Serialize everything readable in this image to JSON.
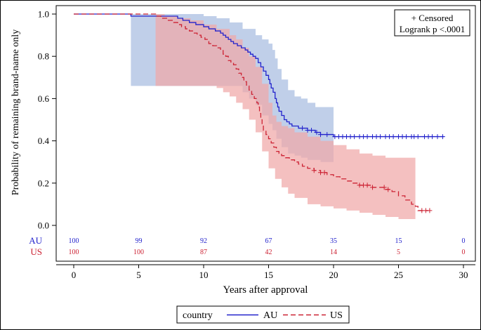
{
  "chart_data": {
    "type": "line",
    "subtype": "kaplan-meier",
    "title": "",
    "xlabel": "Years after approval",
    "ylabel": "Probability of remaining brand-name only",
    "xlim": [
      0,
      30
    ],
    "ylim": [
      0,
      1
    ],
    "xticks": [
      0,
      5,
      10,
      15,
      20,
      25,
      30
    ],
    "yticks": [
      0.0,
      0.2,
      0.4,
      0.6,
      0.8,
      1.0
    ],
    "ytick_labels": [
      "0.0",
      "0.2",
      "0.4",
      "0.6",
      "0.8",
      "1.0"
    ],
    "grid": false,
    "legend": {
      "position": "bottom",
      "title": "country",
      "entries": [
        "AU",
        "US"
      ]
    },
    "inset": {
      "position": "top-right",
      "censored_label": "+ Censored",
      "test_label": "Logrank p <.0001"
    },
    "at_risk": {
      "times": [
        0,
        5,
        10,
        15,
        20,
        25,
        30
      ],
      "rows": [
        {
          "label": "AU",
          "values": [
            "100",
            "99",
            "92",
            "67",
            "35",
            "15",
            "0"
          ]
        },
        {
          "label": "US",
          "values": [
            "100",
            "100",
            "87",
            "42",
            "14",
            "5",
            "0"
          ]
        }
      ]
    },
    "series": [
      {
        "name": "AU",
        "color": "#2222cc",
        "band_color": "#a8bce0",
        "dash": "solid",
        "steps": [
          [
            0,
            1.0
          ],
          [
            4.4,
            0.99
          ],
          [
            8.0,
            0.98
          ],
          [
            8.4,
            0.97
          ],
          [
            8.9,
            0.96
          ],
          [
            9.4,
            0.95
          ],
          [
            10.0,
            0.94
          ],
          [
            10.4,
            0.93
          ],
          [
            10.9,
            0.92
          ],
          [
            11.3,
            0.91
          ],
          [
            11.5,
            0.9
          ],
          [
            11.7,
            0.89
          ],
          [
            11.9,
            0.88
          ],
          [
            12.1,
            0.87
          ],
          [
            12.3,
            0.86
          ],
          [
            12.6,
            0.85
          ],
          [
            12.9,
            0.84
          ],
          [
            13.2,
            0.83
          ],
          [
            13.4,
            0.82
          ],
          [
            13.6,
            0.81
          ],
          [
            13.8,
            0.8
          ],
          [
            14.0,
            0.79
          ],
          [
            14.2,
            0.77
          ],
          [
            14.4,
            0.75
          ],
          [
            14.6,
            0.73
          ],
          [
            14.8,
            0.71
          ],
          [
            15.0,
            0.69
          ],
          [
            15.1,
            0.67
          ],
          [
            15.2,
            0.65
          ],
          [
            15.35,
            0.63
          ],
          [
            15.5,
            0.6
          ],
          [
            15.6,
            0.58
          ],
          [
            15.7,
            0.56
          ],
          [
            15.8,
            0.54
          ],
          [
            16.0,
            0.52
          ],
          [
            16.2,
            0.5
          ],
          [
            16.4,
            0.49
          ],
          [
            16.6,
            0.48
          ],
          [
            16.8,
            0.47
          ],
          [
            17.3,
            0.46
          ],
          [
            18.0,
            0.45
          ],
          [
            18.6,
            0.44
          ],
          [
            19.0,
            0.43
          ],
          [
            20.0,
            0.42
          ],
          [
            28.5,
            0.42
          ]
        ],
        "upper": [
          [
            0,
            1.0
          ],
          [
            8.0,
            1.0
          ],
          [
            10.0,
            0.99
          ],
          [
            11.0,
            0.98
          ],
          [
            12.0,
            0.96
          ],
          [
            13.0,
            0.93
          ],
          [
            14.0,
            0.9
          ],
          [
            14.5,
            0.88
          ],
          [
            15.0,
            0.86
          ],
          [
            15.3,
            0.83
          ],
          [
            15.5,
            0.79
          ],
          [
            15.7,
            0.74
          ],
          [
            16.0,
            0.69
          ],
          [
            16.5,
            0.64
          ],
          [
            17.0,
            0.61
          ],
          [
            17.5,
            0.6
          ],
          [
            18.0,
            0.58
          ],
          [
            18.6,
            0.56
          ],
          [
            20.0,
            0.55
          ]
        ],
        "lower": [
          [
            0,
            1.0
          ],
          [
            4.4,
            0.66
          ],
          [
            8.0,
            0.66
          ],
          [
            10.0,
            0.66
          ],
          [
            11.0,
            0.66
          ],
          [
            12.0,
            0.66
          ],
          [
            13.0,
            0.63
          ],
          [
            13.5,
            0.6
          ],
          [
            14.0,
            0.57
          ],
          [
            14.5,
            0.52
          ],
          [
            15.0,
            0.48
          ],
          [
            15.3,
            0.45
          ],
          [
            15.6,
            0.41
          ],
          [
            16.0,
            0.37
          ],
          [
            16.5,
            0.34
          ],
          [
            17.0,
            0.33
          ],
          [
            17.5,
            0.32
          ],
          [
            18.0,
            0.31
          ],
          [
            19.0,
            0.3
          ],
          [
            20.0,
            0.3
          ]
        ],
        "censored": [
          17.6,
          18.0,
          18.3,
          18.7,
          19.0,
          19.5,
          20.1,
          20.4,
          20.7,
          21.0,
          21.3,
          21.6,
          22.0,
          22.3,
          22.6,
          23.0,
          23.3,
          23.6,
          24.0,
          24.3,
          24.6,
          25.0,
          25.3,
          25.6,
          26.0,
          26.2,
          26.5,
          27.0,
          27.3,
          27.6,
          28.0,
          28.4
        ]
      },
      {
        "name": "US",
        "color": "#cc2233",
        "band_color": "#f0a8a8",
        "dash": "dashed",
        "steps": [
          [
            0,
            1.0
          ],
          [
            6.3,
            0.99
          ],
          [
            6.7,
            0.98
          ],
          [
            7.2,
            0.97
          ],
          [
            7.7,
            0.96
          ],
          [
            8.0,
            0.95
          ],
          [
            8.3,
            0.94
          ],
          [
            8.6,
            0.93
          ],
          [
            8.9,
            0.92
          ],
          [
            9.2,
            0.91
          ],
          [
            9.5,
            0.9
          ],
          [
            9.8,
            0.89
          ],
          [
            10.1,
            0.88
          ],
          [
            10.4,
            0.86
          ],
          [
            10.7,
            0.85
          ],
          [
            11.0,
            0.84
          ],
          [
            11.3,
            0.83
          ],
          [
            11.5,
            0.81
          ],
          [
            11.7,
            0.8
          ],
          [
            11.9,
            0.78
          ],
          [
            12.1,
            0.77
          ],
          [
            12.3,
            0.76
          ],
          [
            12.5,
            0.74
          ],
          [
            12.7,
            0.72
          ],
          [
            12.9,
            0.7
          ],
          [
            13.1,
            0.68
          ],
          [
            13.3,
            0.66
          ],
          [
            13.5,
            0.64
          ],
          [
            13.7,
            0.62
          ],
          [
            13.9,
            0.6
          ],
          [
            14.1,
            0.58
          ],
          [
            14.2,
            0.56
          ],
          [
            14.3,
            0.53
          ],
          [
            14.4,
            0.5
          ],
          [
            14.5,
            0.47
          ],
          [
            14.6,
            0.45
          ],
          [
            14.8,
            0.43
          ],
          [
            15.0,
            0.41
          ],
          [
            15.2,
            0.39
          ],
          [
            15.4,
            0.37
          ],
          [
            15.6,
            0.35
          ],
          [
            15.8,
            0.34
          ],
          [
            16.0,
            0.33
          ],
          [
            16.3,
            0.32
          ],
          [
            16.6,
            0.31
          ],
          [
            17.0,
            0.3
          ],
          [
            17.3,
            0.29
          ],
          [
            17.6,
            0.28
          ],
          [
            18.0,
            0.27
          ],
          [
            18.5,
            0.26
          ],
          [
            19.0,
            0.25
          ],
          [
            19.5,
            0.24
          ],
          [
            20.0,
            0.23
          ],
          [
            20.5,
            0.22
          ],
          [
            21.0,
            0.21
          ],
          [
            21.5,
            0.2
          ],
          [
            22.0,
            0.19
          ],
          [
            23.0,
            0.18
          ],
          [
            24.0,
            0.17
          ],
          [
            24.5,
            0.16
          ],
          [
            25.0,
            0.14
          ],
          [
            25.5,
            0.12
          ],
          [
            26.0,
            0.1
          ],
          [
            26.3,
            0.09
          ],
          [
            26.5,
            0.07
          ],
          [
            27.3,
            0.07
          ]
        ],
        "upper": [
          [
            0,
            1.0
          ],
          [
            6.3,
            1.0
          ],
          [
            7.0,
            0.99
          ],
          [
            8.0,
            0.98
          ],
          [
            9.0,
            0.97
          ],
          [
            10.0,
            0.95
          ],
          [
            11.0,
            0.93
          ],
          [
            12.0,
            0.9
          ],
          [
            12.5,
            0.88
          ],
          [
            13.0,
            0.84
          ],
          [
            13.5,
            0.8
          ],
          [
            14.0,
            0.75
          ],
          [
            14.5,
            0.67
          ],
          [
            15.0,
            0.58
          ],
          [
            15.3,
            0.52
          ],
          [
            15.6,
            0.49
          ],
          [
            16.0,
            0.47
          ],
          [
            16.5,
            0.46
          ],
          [
            17.0,
            0.44
          ],
          [
            18.0,
            0.42
          ],
          [
            19.0,
            0.4
          ],
          [
            20.0,
            0.38
          ],
          [
            21.0,
            0.36
          ],
          [
            22.0,
            0.34
          ],
          [
            23.0,
            0.33
          ],
          [
            24.0,
            0.32
          ],
          [
            26.3,
            0.32
          ]
        ],
        "lower": [
          [
            0,
            1.0
          ],
          [
            6.3,
            0.66
          ],
          [
            8.0,
            0.66
          ],
          [
            10.0,
            0.66
          ],
          [
            11.0,
            0.65
          ],
          [
            11.5,
            0.63
          ],
          [
            12.0,
            0.61
          ],
          [
            12.5,
            0.58
          ],
          [
            13.0,
            0.55
          ],
          [
            13.5,
            0.5
          ],
          [
            14.0,
            0.44
          ],
          [
            14.5,
            0.35
          ],
          [
            15.0,
            0.27
          ],
          [
            15.5,
            0.22
          ],
          [
            16.0,
            0.18
          ],
          [
            16.5,
            0.15
          ],
          [
            17.0,
            0.13
          ],
          [
            18.0,
            0.1
          ],
          [
            19.0,
            0.09
          ],
          [
            20.0,
            0.08
          ],
          [
            21.0,
            0.07
          ],
          [
            22.0,
            0.06
          ],
          [
            23.0,
            0.05
          ],
          [
            24.0,
            0.04
          ],
          [
            25.0,
            0.03
          ],
          [
            26.3,
            0.02
          ]
        ],
        "censored": [
          18.5,
          19.0,
          19.3,
          22.0,
          22.3,
          22.6,
          23.0,
          23.9,
          24.2,
          26.8,
          27.1,
          27.4
        ]
      }
    ]
  }
}
